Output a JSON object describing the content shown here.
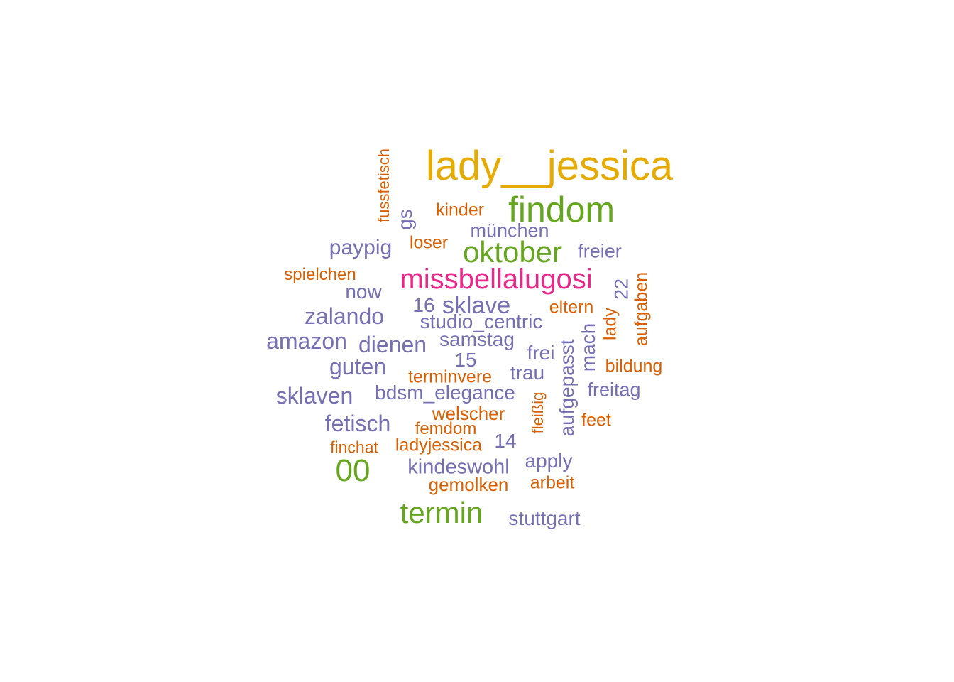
{
  "words": [
    {
      "text": "lady__jessica",
      "color": "#e6ab02"
    },
    {
      "text": "findom",
      "color": "#66a61e"
    },
    {
      "text": "oktober",
      "color": "#66a61e"
    },
    {
      "text": "missbellalugosi",
      "color": "#e7298a"
    },
    {
      "text": "00",
      "color": "#66a61e"
    },
    {
      "text": "termin",
      "color": "#66a61e"
    },
    {
      "text": "fussfetisch",
      "color": "#d95f02"
    },
    {
      "text": "gs",
      "color": "#7570b3"
    },
    {
      "text": "kinder",
      "color": "#d95f02"
    },
    {
      "text": "münchen",
      "color": "#7570b3"
    },
    {
      "text": "paypig",
      "color": "#7570b3"
    },
    {
      "text": "loser",
      "color": "#d95f02"
    },
    {
      "text": "freier",
      "color": "#7570b3"
    },
    {
      "text": "spielchen",
      "color": "#d95f02"
    },
    {
      "text": "now",
      "color": "#7570b3"
    },
    {
      "text": "22",
      "color": "#7570b3"
    },
    {
      "text": "aufgaben",
      "color": "#d95f02"
    },
    {
      "text": "16",
      "color": "#7570b3"
    },
    {
      "text": "sklave",
      "color": "#7570b3"
    },
    {
      "text": "zalando",
      "color": "#7570b3"
    },
    {
      "text": "eltern",
      "color": "#d95f02"
    },
    {
      "text": "studio_centric",
      "color": "#7570b3"
    },
    {
      "text": "lady",
      "color": "#d95f02"
    },
    {
      "text": "amazon",
      "color": "#7570b3"
    },
    {
      "text": "dienen",
      "color": "#7570b3"
    },
    {
      "text": "samstag",
      "color": "#7570b3"
    },
    {
      "text": "mach",
      "color": "#7570b3"
    },
    {
      "text": "15",
      "color": "#7570b3"
    },
    {
      "text": "frei",
      "color": "#7570b3"
    },
    {
      "text": "guten",
      "color": "#7570b3"
    },
    {
      "text": "aufgepasst",
      "color": "#7570b3"
    },
    {
      "text": "bildung",
      "color": "#d95f02"
    },
    {
      "text": "terminvere",
      "color": "#d95f02"
    },
    {
      "text": "trau",
      "color": "#7570b3"
    },
    {
      "text": "sklaven",
      "color": "#7570b3"
    },
    {
      "text": "bdsm_elegance",
      "color": "#7570b3"
    },
    {
      "text": "freitag",
      "color": "#7570b3"
    },
    {
      "text": "fleißig",
      "color": "#d95f02"
    },
    {
      "text": "welscher",
      "color": "#d95f02"
    },
    {
      "text": "fetisch",
      "color": "#7570b3"
    },
    {
      "text": "femdom",
      "color": "#d95f02"
    },
    {
      "text": "feet",
      "color": "#d95f02"
    },
    {
      "text": "finchat",
      "color": "#d95f02"
    },
    {
      "text": "ladyjessica",
      "color": "#d95f02"
    },
    {
      "text": "14",
      "color": "#7570b3"
    },
    {
      "text": "apply",
      "color": "#7570b3"
    },
    {
      "text": "kindeswohl",
      "color": "#7570b3"
    },
    {
      "text": "gemolken",
      "color": "#d95f02"
    },
    {
      "text": "arbeit",
      "color": "#d95f02"
    },
    {
      "text": "stuttgart",
      "color": "#7570b3"
    }
  ]
}
